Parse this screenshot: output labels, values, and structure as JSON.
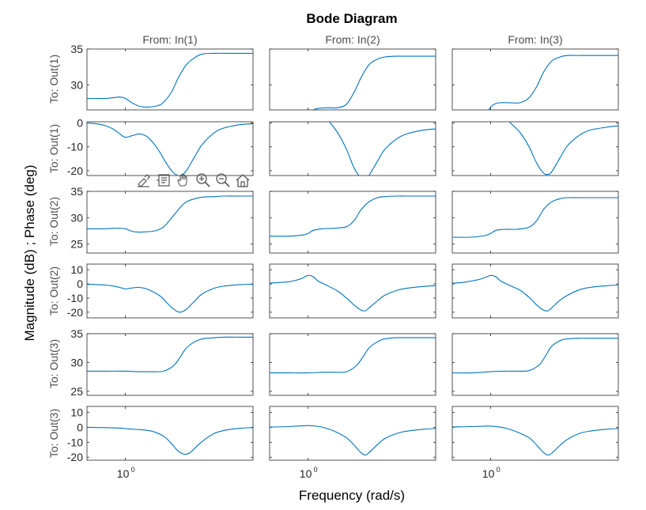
{
  "colors": {
    "line": "#0072BD",
    "axes": "#262626",
    "label": "#4d4d4d"
  },
  "chart_data": {
    "type": "line",
    "title": "Bode Diagram",
    "xlabel": "Frequency  (rad/s)",
    "ylabel": "Magnitude (dB) ; Phase (deg)",
    "xscale": "log",
    "xlim": [
      0.5,
      10
    ],
    "x_tick_labels": [
      {
        "base": "10",
        "exp": "0",
        "value": 1
      }
    ],
    "grid": false,
    "columns": [
      "From: In(1)",
      "From: In(2)",
      "From: In(3)"
    ],
    "rows": [
      {
        "label": "To: Out(1)",
        "kind": "magnitude",
        "ylim": [
          26.5,
          35
        ],
        "yticks": [
          30,
          35
        ]
      },
      {
        "label": "To: Out(1)",
        "kind": "phase",
        "ylim": [
          -22,
          0.5
        ],
        "yticks": [
          -20,
          -10,
          0
        ]
      },
      {
        "label": "To: Out(2)",
        "kind": "magnitude",
        "ylim": [
          23.3,
          35
        ],
        "yticks": [
          25,
          30,
          35
        ]
      },
      {
        "label": "To: Out(2)",
        "kind": "phase",
        "ylim": [
          -24,
          14
        ],
        "yticks": [
          -20,
          -10,
          0,
          10
        ]
      },
      {
        "label": "To: Out(3)",
        "kind": "magnitude",
        "ylim": [
          24.3,
          35
        ],
        "yticks": [
          25,
          30,
          35
        ]
      },
      {
        "label": "To: Out(3)",
        "kind": "phase",
        "ylim": [
          -22,
          14
        ],
        "yticks": [
          -20,
          -10,
          0,
          10
        ]
      }
    ],
    "series": [
      [
        {
          "x": [
            0.5,
            0.6,
            0.7,
            0.8,
            0.9,
            1.0,
            1.15,
            1.3,
            1.5,
            1.8,
            2.0,
            2.3,
            2.6,
            3.0,
            3.5,
            4.0,
            5.0,
            6.0,
            8.0,
            10.0
          ],
          "y": [
            28.1,
            28.1,
            28.1,
            28.2,
            28.3,
            28.1,
            27.4,
            27.0,
            26.9,
            27.1,
            27.6,
            29.0,
            31.0,
            32.8,
            33.8,
            34.3,
            34.4,
            34.4,
            34.4,
            34.4
          ]
        },
        {
          "x": [
            0.5,
            0.6,
            0.7,
            0.8,
            0.9,
            1.0,
            1.15,
            1.3,
            1.5,
            1.8,
            2.1,
            2.4,
            2.7,
            3.0,
            3.5,
            4.0,
            5.0,
            6.0,
            8.0,
            10.0
          ],
          "y": [
            0,
            -0.4,
            -1.2,
            -2.5,
            -4.5,
            -6.0,
            -5.2,
            -4.6,
            -6.0,
            -11.0,
            -17.0,
            -21.0,
            -22.0,
            -20.0,
            -14.0,
            -9.0,
            -4.0,
            -2.0,
            -0.7,
            -0.3
          ]
        },
        {
          "x": [
            0.5,
            0.6,
            0.7,
            0.8,
            0.9,
            1.0,
            1.1,
            1.2,
            1.4,
            1.7,
            2.0,
            2.4,
            2.7,
            3.0,
            3.5,
            4.0,
            5.0,
            6.0,
            8.0,
            10.0
          ],
          "y": [
            27.9,
            27.9,
            27.9,
            28.0,
            28.0,
            27.9,
            27.5,
            27.3,
            27.3,
            27.5,
            28.3,
            30.5,
            32.0,
            33.0,
            33.6,
            33.9,
            34.0,
            34.1,
            34.1,
            34.1
          ]
        },
        {
          "x": [
            0.5,
            0.6,
            0.7,
            0.8,
            0.9,
            1.0,
            1.1,
            1.25,
            1.4,
            1.6,
            1.9,
            2.2,
            2.5,
            2.7,
            3.0,
            3.5,
            4.0,
            5.0,
            6.0,
            8.0,
            10.0
          ],
          "y": [
            -0.3,
            -0.5,
            -0.8,
            -1.5,
            -2.5,
            -3.5,
            -3.0,
            -2.5,
            -3.0,
            -5.0,
            -9.0,
            -15.0,
            -19.0,
            -20.0,
            -18.0,
            -12.0,
            -7.0,
            -3.0,
            -1.5,
            -0.5,
            -0.2
          ]
        },
        {
          "x": [
            0.5,
            0.7,
            1.0,
            1.3,
            1.6,
            2.0,
            2.4,
            2.7,
            3.0,
            3.5,
            4.0,
            5.0,
            6.0,
            8.0,
            10.0
          ],
          "y": [
            28.5,
            28.5,
            28.5,
            28.4,
            28.4,
            28.5,
            29.5,
            31.0,
            32.5,
            33.6,
            34.1,
            34.3,
            34.4,
            34.4,
            34.4
          ]
        },
        {
          "x": [
            0.5,
            0.7,
            0.9,
            1.0,
            1.1,
            1.3,
            1.6,
            2.0,
            2.3,
            2.6,
            2.9,
            3.2,
            3.7,
            4.2,
            5.0,
            6.0,
            8.0,
            10.0
          ],
          "y": [
            0,
            -0.2,
            -0.5,
            -0.8,
            -1.2,
            -1.5,
            -2.5,
            -6.0,
            -11.0,
            -16.0,
            -18.0,
            -17.0,
            -12.0,
            -8.0,
            -4.0,
            -2.0,
            -0.6,
            -0.2
          ]
        }
      ],
      [
        {
          "x": [
            0.5,
            0.6,
            0.7,
            0.8,
            0.9,
            1.0,
            1.1,
            1.2,
            1.4,
            1.7,
            2.0,
            2.3,
            2.6,
            3.0,
            3.5,
            4.0,
            5.0,
            6.0,
            8.0,
            10.0
          ],
          "y": [
            23.5,
            23.5,
            23.6,
            23.8,
            24.5,
            25.9,
            26.5,
            26.7,
            26.8,
            26.8,
            27.3,
            29.0,
            31.0,
            32.8,
            33.6,
            33.9,
            34.0,
            34.0,
            34.0,
            34.0
          ]
        },
        {
          "x": [
            0.5,
            0.6,
            0.7,
            0.8,
            0.9,
            1.0,
            1.1,
            1.2,
            1.4,
            1.7,
            2.0,
            2.3,
            2.6,
            2.8,
            3.0,
            3.5,
            4.0,
            5.0,
            6.0,
            8.0,
            10.0
          ],
          "y": [
            2.0,
            3.5,
            6.0,
            9.0,
            13.0,
            15.5,
            12.0,
            7.0,
            2.0,
            -4.0,
            -11.0,
            -19.0,
            -23.0,
            -23.5,
            -22.0,
            -16.0,
            -11.0,
            -6.5,
            -4.5,
            -3.0,
            -2.5
          ]
        },
        {
          "x": [
            0.5,
            0.7,
            0.9,
            1.0,
            1.1,
            1.3,
            1.6,
            2.0,
            2.3,
            2.6,
            3.0,
            3.5,
            4.0,
            5.0,
            6.0,
            8.0,
            10.0
          ],
          "y": [
            26.5,
            26.5,
            26.7,
            27.0,
            27.6,
            27.9,
            28.0,
            28.3,
            29.5,
            31.5,
            33.0,
            33.8,
            34.0,
            34.1,
            34.1,
            34.1,
            34.1
          ]
        },
        {
          "x": [
            0.5,
            0.6,
            0.7,
            0.8,
            0.9,
            1.0,
            1.1,
            1.2,
            1.4,
            1.7,
            2.0,
            2.3,
            2.6,
            2.8,
            3.0,
            3.5,
            4.0,
            5.0,
            6.0,
            8.0,
            10.0
          ],
          "y": [
            0.5,
            1.0,
            1.5,
            2.5,
            4.0,
            6.0,
            5.0,
            2.0,
            -1.0,
            -5.0,
            -10.0,
            -15.0,
            -18.5,
            -19.0,
            -17.0,
            -12.0,
            -8.0,
            -4.5,
            -3.0,
            -1.8,
            -1.2
          ]
        },
        {
          "x": [
            0.5,
            0.7,
            1.0,
            1.3,
            1.6,
            2.0,
            2.4,
            2.7,
            3.0,
            3.5,
            4.0,
            5.0,
            6.0,
            8.0,
            10.0
          ],
          "y": [
            28.2,
            28.2,
            28.2,
            28.3,
            28.3,
            28.4,
            29.5,
            31.0,
            32.5,
            33.6,
            34.1,
            34.3,
            34.3,
            34.3,
            34.3
          ]
        },
        {
          "x": [
            0.5,
            0.7,
            0.9,
            1.0,
            1.1,
            1.3,
            1.6,
            2.0,
            2.3,
            2.6,
            2.8,
            3.0,
            3.5,
            4.0,
            5.0,
            6.0,
            8.0,
            10.0
          ],
          "y": [
            0.2,
            0.5,
            1.0,
            1.2,
            1.0,
            0,
            -2.5,
            -7.0,
            -12.0,
            -17.0,
            -18.5,
            -17.0,
            -11.5,
            -7.5,
            -4.0,
            -2.5,
            -1.3,
            -0.8
          ]
        }
      ],
      [
        {
          "x": [
            0.5,
            0.6,
            0.7,
            0.8,
            0.9,
            1.0,
            1.1,
            1.2,
            1.4,
            1.7,
            2.0,
            2.3,
            2.6,
            3.0,
            3.5,
            4.0,
            5.0,
            6.0,
            8.0,
            10.0
          ],
          "y": [
            24.5,
            24.5,
            24.6,
            24.9,
            25.7,
            26.9,
            27.4,
            27.5,
            27.5,
            27.5,
            28.2,
            29.8,
            31.8,
            33.3,
            33.9,
            34.1,
            34.1,
            34.1,
            34.1,
            34.1
          ]
        },
        {
          "x": [
            0.5,
            0.6,
            0.7,
            0.8,
            0.9,
            1.0,
            1.1,
            1.2,
            1.4,
            1.7,
            2.0,
            2.3,
            2.6,
            2.8,
            3.0,
            3.5,
            4.0,
            5.0,
            6.0,
            8.0,
            10.0
          ],
          "y": [
            1.5,
            3.0,
            5.5,
            8.5,
            11.5,
            13.0,
            10.0,
            5.0,
            0.5,
            -4.0,
            -10.0,
            -17.0,
            -21.0,
            -21.5,
            -20.5,
            -14.5,
            -9.5,
            -5.0,
            -3.0,
            -1.8,
            -1.2
          ]
        },
        {
          "x": [
            0.5,
            0.7,
            0.9,
            1.0,
            1.1,
            1.3,
            1.6,
            2.0,
            2.3,
            2.6,
            3.0,
            3.5,
            4.0,
            5.0,
            6.0,
            8.0,
            10.0
          ],
          "y": [
            26.3,
            26.3,
            26.6,
            27.0,
            27.6,
            27.8,
            27.8,
            28.2,
            29.5,
            31.6,
            33.0,
            33.6,
            33.8,
            33.8,
            33.8,
            33.8,
            33.8
          ]
        },
        {
          "x": [
            0.5,
            0.6,
            0.7,
            0.8,
            0.9,
            1.0,
            1.1,
            1.2,
            1.4,
            1.7,
            2.0,
            2.3,
            2.6,
            2.8,
            3.0,
            3.5,
            4.0,
            5.0,
            6.0,
            8.0,
            10.0
          ],
          "y": [
            0.5,
            1.0,
            2.0,
            3.0,
            4.5,
            6.0,
            5.0,
            2.0,
            -1.0,
            -4.5,
            -9.5,
            -15.0,
            -18.5,
            -19.0,
            -17.0,
            -11.5,
            -8.0,
            -4.0,
            -2.5,
            -1.3,
            -0.8
          ]
        },
        {
          "x": [
            0.5,
            0.7,
            1.0,
            1.3,
            1.6,
            2.0,
            2.4,
            2.7,
            3.0,
            3.5,
            4.0,
            5.0,
            6.0,
            8.0,
            10.0
          ],
          "y": [
            28.2,
            28.2,
            28.4,
            28.5,
            28.5,
            28.6,
            29.6,
            31.2,
            32.8,
            33.8,
            34.1,
            34.2,
            34.2,
            34.2,
            34.2
          ]
        },
        {
          "x": [
            0.5,
            0.7,
            0.9,
            1.0,
            1.1,
            1.3,
            1.6,
            2.0,
            2.3,
            2.6,
            2.8,
            3.0,
            3.5,
            4.0,
            5.0,
            6.0,
            8.0,
            10.0
          ],
          "y": [
            0.3,
            0.5,
            0.8,
            0.8,
            0.5,
            -0.5,
            -3.0,
            -7.0,
            -12.0,
            -17.0,
            -18.5,
            -17.5,
            -12.0,
            -8.0,
            -4.0,
            -2.5,
            -1.3,
            -0.8
          ]
        }
      ]
    ]
  }
}
